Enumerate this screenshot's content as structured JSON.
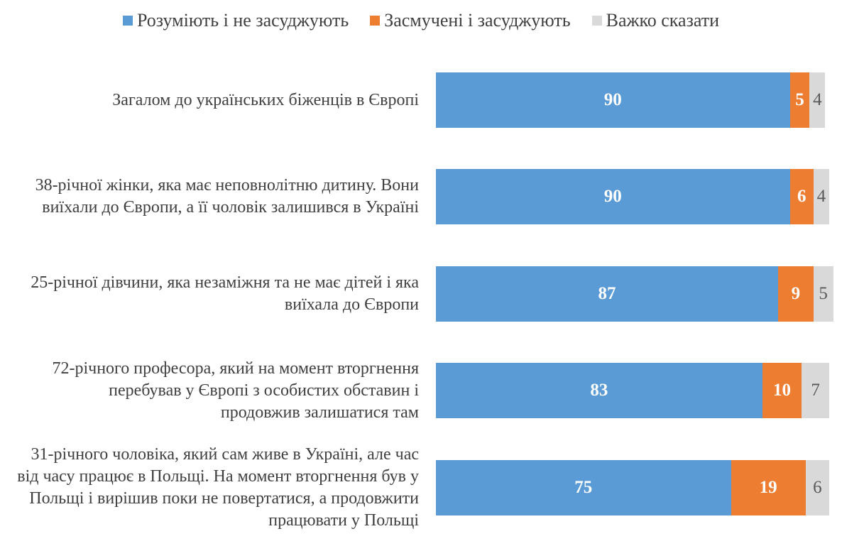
{
  "chart_data": {
    "type": "bar",
    "orientation": "horizontal",
    "stacked": true,
    "title": "",
    "xlabel": "",
    "ylabel": "",
    "xlim": [
      0,
      100
    ],
    "legend_position": "top",
    "grid": false,
    "categories": [
      "Загалом до українських біженців в Європі",
      "38-річної жінки, яка має неповнолітню дитину. Вони виїхали до Європи, а її чоловік залишився в Україні",
      "25-річної дівчини, яка незаміжня та не має дітей і яка виїхала до Європи",
      "72-річного професора, який на момент вторгнення перебував у Європі з особистих обставин і продовжив залишатися там",
      "31-річного чоловіка, який сам живе в Україні, але час від часу працює в Польщі. На момент вторгнення був у Польщі і вирішив поки не повертатися, а продовжити працювати у Польщі"
    ],
    "series": [
      {
        "name": "Розуміють і не засуджують",
        "color": "#5b9bd5",
        "values": [
          90,
          90,
          87,
          83,
          75
        ]
      },
      {
        "name": "Засмучені і засуджують",
        "color": "#ed7d31",
        "values": [
          5,
          6,
          9,
          10,
          19
        ]
      },
      {
        "name": "Важко сказати",
        "color": "#d9d9d9",
        "values": [
          4,
          4,
          5,
          7,
          6
        ]
      }
    ]
  }
}
